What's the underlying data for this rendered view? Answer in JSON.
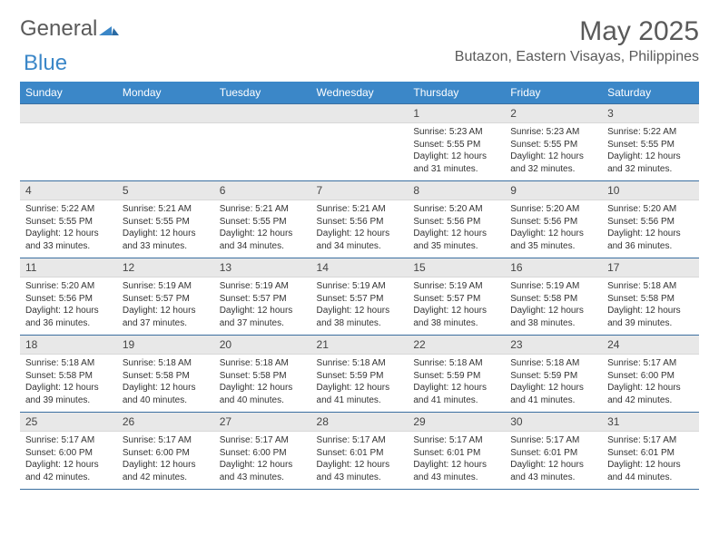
{
  "brand": {
    "text1": "General",
    "text2": "Blue",
    "shape_color": "#3b87c8"
  },
  "header": {
    "month_title": "May 2025",
    "location": "Butazon, Eastern Visayas, Philippines"
  },
  "colors": {
    "header_bg": "#3b87c8",
    "header_text": "#ffffff",
    "daynum_bg": "#e8e8e8",
    "border": "#3b6fa0"
  },
  "weekdays": [
    "Sunday",
    "Monday",
    "Tuesday",
    "Wednesday",
    "Thursday",
    "Friday",
    "Saturday"
  ],
  "weeks": [
    [
      {
        "n": "",
        "lines": [
          "",
          "",
          "",
          ""
        ]
      },
      {
        "n": "",
        "lines": [
          "",
          "",
          "",
          ""
        ]
      },
      {
        "n": "",
        "lines": [
          "",
          "",
          "",
          ""
        ]
      },
      {
        "n": "",
        "lines": [
          "",
          "",
          "",
          ""
        ]
      },
      {
        "n": "1",
        "lines": [
          "Sunrise: 5:23 AM",
          "Sunset: 5:55 PM",
          "Daylight: 12 hours",
          "and 31 minutes."
        ]
      },
      {
        "n": "2",
        "lines": [
          "Sunrise: 5:23 AM",
          "Sunset: 5:55 PM",
          "Daylight: 12 hours",
          "and 32 minutes."
        ]
      },
      {
        "n": "3",
        "lines": [
          "Sunrise: 5:22 AM",
          "Sunset: 5:55 PM",
          "Daylight: 12 hours",
          "and 32 minutes."
        ]
      }
    ],
    [
      {
        "n": "4",
        "lines": [
          "Sunrise: 5:22 AM",
          "Sunset: 5:55 PM",
          "Daylight: 12 hours",
          "and 33 minutes."
        ]
      },
      {
        "n": "5",
        "lines": [
          "Sunrise: 5:21 AM",
          "Sunset: 5:55 PM",
          "Daylight: 12 hours",
          "and 33 minutes."
        ]
      },
      {
        "n": "6",
        "lines": [
          "Sunrise: 5:21 AM",
          "Sunset: 5:55 PM",
          "Daylight: 12 hours",
          "and 34 minutes."
        ]
      },
      {
        "n": "7",
        "lines": [
          "Sunrise: 5:21 AM",
          "Sunset: 5:56 PM",
          "Daylight: 12 hours",
          "and 34 minutes."
        ]
      },
      {
        "n": "8",
        "lines": [
          "Sunrise: 5:20 AM",
          "Sunset: 5:56 PM",
          "Daylight: 12 hours",
          "and 35 minutes."
        ]
      },
      {
        "n": "9",
        "lines": [
          "Sunrise: 5:20 AM",
          "Sunset: 5:56 PM",
          "Daylight: 12 hours",
          "and 35 minutes."
        ]
      },
      {
        "n": "10",
        "lines": [
          "Sunrise: 5:20 AM",
          "Sunset: 5:56 PM",
          "Daylight: 12 hours",
          "and 36 minutes."
        ]
      }
    ],
    [
      {
        "n": "11",
        "lines": [
          "Sunrise: 5:20 AM",
          "Sunset: 5:56 PM",
          "Daylight: 12 hours",
          "and 36 minutes."
        ]
      },
      {
        "n": "12",
        "lines": [
          "Sunrise: 5:19 AM",
          "Sunset: 5:57 PM",
          "Daylight: 12 hours",
          "and 37 minutes."
        ]
      },
      {
        "n": "13",
        "lines": [
          "Sunrise: 5:19 AM",
          "Sunset: 5:57 PM",
          "Daylight: 12 hours",
          "and 37 minutes."
        ]
      },
      {
        "n": "14",
        "lines": [
          "Sunrise: 5:19 AM",
          "Sunset: 5:57 PM",
          "Daylight: 12 hours",
          "and 38 minutes."
        ]
      },
      {
        "n": "15",
        "lines": [
          "Sunrise: 5:19 AM",
          "Sunset: 5:57 PM",
          "Daylight: 12 hours",
          "and 38 minutes."
        ]
      },
      {
        "n": "16",
        "lines": [
          "Sunrise: 5:19 AM",
          "Sunset: 5:58 PM",
          "Daylight: 12 hours",
          "and 38 minutes."
        ]
      },
      {
        "n": "17",
        "lines": [
          "Sunrise: 5:18 AM",
          "Sunset: 5:58 PM",
          "Daylight: 12 hours",
          "and 39 minutes."
        ]
      }
    ],
    [
      {
        "n": "18",
        "lines": [
          "Sunrise: 5:18 AM",
          "Sunset: 5:58 PM",
          "Daylight: 12 hours",
          "and 39 minutes."
        ]
      },
      {
        "n": "19",
        "lines": [
          "Sunrise: 5:18 AM",
          "Sunset: 5:58 PM",
          "Daylight: 12 hours",
          "and 40 minutes."
        ]
      },
      {
        "n": "20",
        "lines": [
          "Sunrise: 5:18 AM",
          "Sunset: 5:58 PM",
          "Daylight: 12 hours",
          "and 40 minutes."
        ]
      },
      {
        "n": "21",
        "lines": [
          "Sunrise: 5:18 AM",
          "Sunset: 5:59 PM",
          "Daylight: 12 hours",
          "and 41 minutes."
        ]
      },
      {
        "n": "22",
        "lines": [
          "Sunrise: 5:18 AM",
          "Sunset: 5:59 PM",
          "Daylight: 12 hours",
          "and 41 minutes."
        ]
      },
      {
        "n": "23",
        "lines": [
          "Sunrise: 5:18 AM",
          "Sunset: 5:59 PM",
          "Daylight: 12 hours",
          "and 41 minutes."
        ]
      },
      {
        "n": "24",
        "lines": [
          "Sunrise: 5:17 AM",
          "Sunset: 6:00 PM",
          "Daylight: 12 hours",
          "and 42 minutes."
        ]
      }
    ],
    [
      {
        "n": "25",
        "lines": [
          "Sunrise: 5:17 AM",
          "Sunset: 6:00 PM",
          "Daylight: 12 hours",
          "and 42 minutes."
        ]
      },
      {
        "n": "26",
        "lines": [
          "Sunrise: 5:17 AM",
          "Sunset: 6:00 PM",
          "Daylight: 12 hours",
          "and 42 minutes."
        ]
      },
      {
        "n": "27",
        "lines": [
          "Sunrise: 5:17 AM",
          "Sunset: 6:00 PM",
          "Daylight: 12 hours",
          "and 43 minutes."
        ]
      },
      {
        "n": "28",
        "lines": [
          "Sunrise: 5:17 AM",
          "Sunset: 6:01 PM",
          "Daylight: 12 hours",
          "and 43 minutes."
        ]
      },
      {
        "n": "29",
        "lines": [
          "Sunrise: 5:17 AM",
          "Sunset: 6:01 PM",
          "Daylight: 12 hours",
          "and 43 minutes."
        ]
      },
      {
        "n": "30",
        "lines": [
          "Sunrise: 5:17 AM",
          "Sunset: 6:01 PM",
          "Daylight: 12 hours",
          "and 43 minutes."
        ]
      },
      {
        "n": "31",
        "lines": [
          "Sunrise: 5:17 AM",
          "Sunset: 6:01 PM",
          "Daylight: 12 hours",
          "and 44 minutes."
        ]
      }
    ]
  ]
}
